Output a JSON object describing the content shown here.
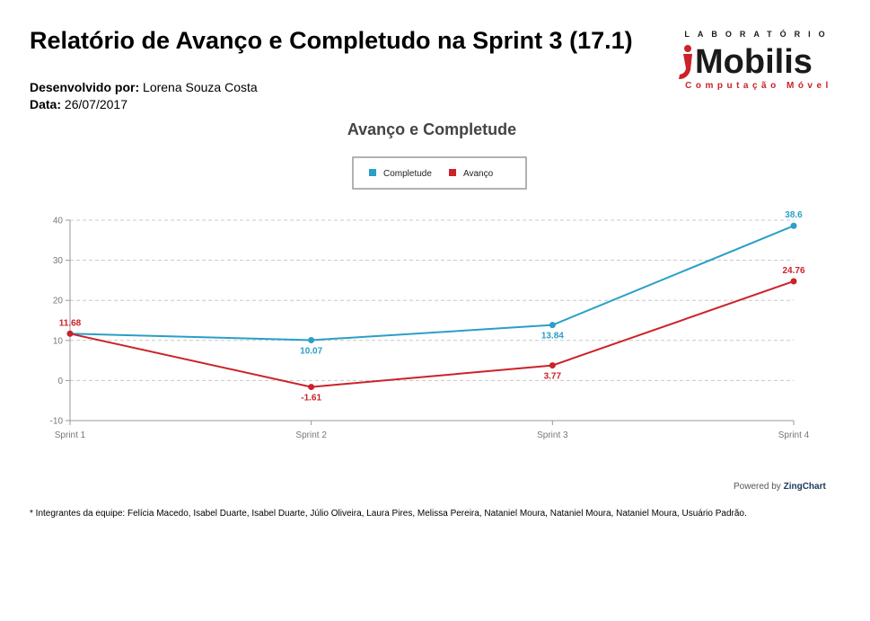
{
  "report": {
    "title": "Relatório de Avanço e Completudo na Sprint 3 (17.1)",
    "author_label": "Desenvolvido por:",
    "author_value": "Lorena Souza Costa",
    "date_label": "Data:",
    "date_value": "26/07/2017"
  },
  "logo": {
    "top_text": "LABORATÓRIO",
    "brand_text": "Mobilis",
    "bottom_text": "Computação Móvel",
    "brand_color": "#1a1a1a",
    "accent_color": "#cc2229"
  },
  "chart_data": {
    "type": "line",
    "title": "Avanço e Completude",
    "categories": [
      "Sprint 1",
      "Sprint 2",
      "Sprint 3",
      "Sprint 4"
    ],
    "series": [
      {
        "name": "Completude",
        "color": "#2a9fc7",
        "values": [
          11.68,
          10.07,
          13.84,
          38.6
        ],
        "labels": [
          "",
          "10.07",
          "13.84",
          "38.6"
        ]
      },
      {
        "name": "Avanço",
        "color": "#cc2229",
        "values": [
          11.68,
          -1.61,
          3.77,
          24.76
        ],
        "labels": [
          "11.68",
          "-1.61",
          "3.77",
          "24.76"
        ]
      }
    ],
    "ylim": [
      -10,
      40
    ],
    "yticks": [
      "-10",
      "0",
      "10",
      "20",
      "30",
      "40"
    ],
    "grid": true,
    "legend": "top-center"
  },
  "powered_by": {
    "prefix": "Powered by",
    "brand": "ZingChart"
  },
  "footnote": "* Integrantes da equipe: Felícia Macedo, Isabel Duarte, Isabel Duarte, Júlio Oliveira, Laura Pires, Melissa Pereira, Nataniel Moura, Nataniel Moura, Nataniel Moura, Usuário Padrão."
}
